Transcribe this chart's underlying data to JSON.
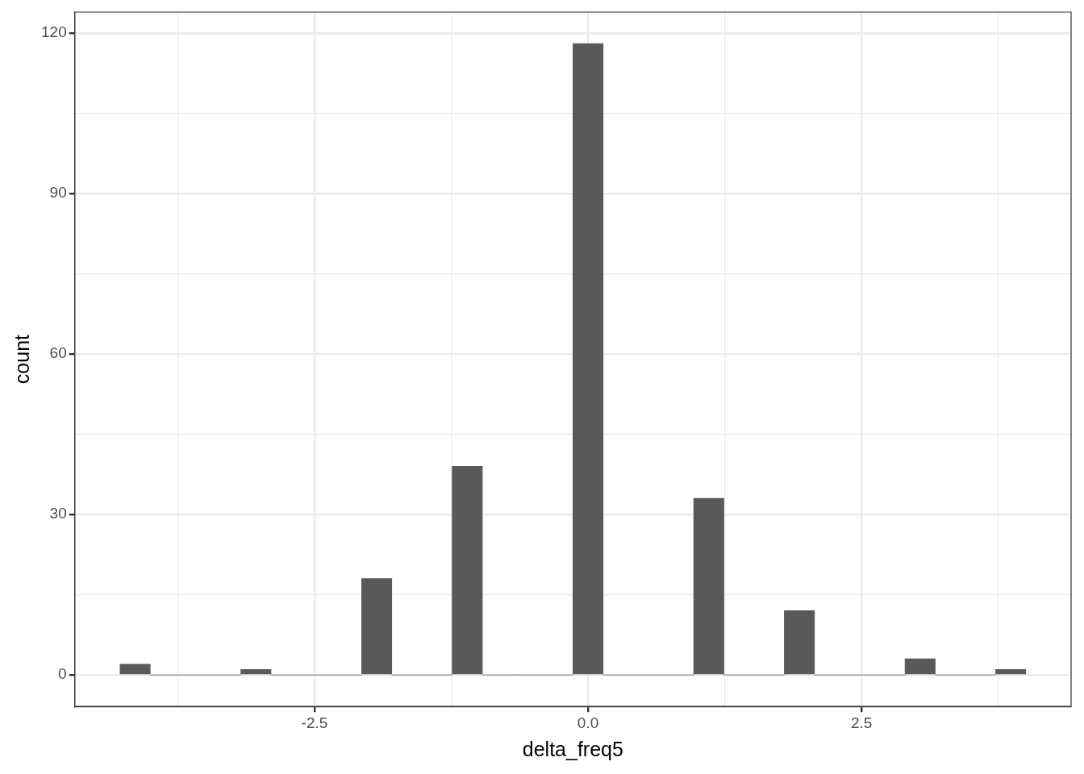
{
  "chart_data": {
    "type": "histogram",
    "xlabel": "delta_freq5",
    "ylabel": "count",
    "color": "#595959",
    "bins": [
      -4.278,
      -4.002,
      -3.726,
      -3.45,
      -3.174,
      -2.898,
      -2.622,
      -2.346,
      -2.07,
      -1.794,
      -1.518,
      -1.242,
      -0.966,
      -0.69,
      -0.414,
      -0.138,
      0.138,
      0.414,
      0.69,
      0.966,
      1.242,
      1.518,
      1.794,
      2.07,
      2.346,
      2.622,
      2.898,
      3.174,
      3.45,
      3.726,
      4.002
    ],
    "values": [
      2,
      0,
      0,
      0,
      1,
      0,
      0,
      0,
      18,
      0,
      0,
      39,
      0,
      0,
      0,
      118,
      0,
      0,
      0,
      33,
      0,
      0,
      12,
      0,
      0,
      0,
      3,
      0,
      0,
      1
    ],
    "xlim": [
      -4.692,
      4.416
    ],
    "ylim": [
      -5.9,
      123.9
    ],
    "xticks": [
      {
        "value": -3.75,
        "label": null
      },
      -2.5,
      {
        "value": -1.25,
        "label": null
      },
      {
        "value": 0,
        "label": "0.0"
      },
      {
        "value": 1.25,
        "label": null
      },
      2.5,
      {
        "value": 3.75,
        "label": null
      }
    ],
    "yticks": [
      0,
      {
        "value": 15,
        "label": null
      },
      30,
      {
        "value": 45,
        "label": null
      },
      60,
      {
        "value": 75,
        "label": null
      },
      90,
      {
        "value": 105,
        "label": null
      },
      120
    ],
    "grid": true,
    "legend": false
  }
}
